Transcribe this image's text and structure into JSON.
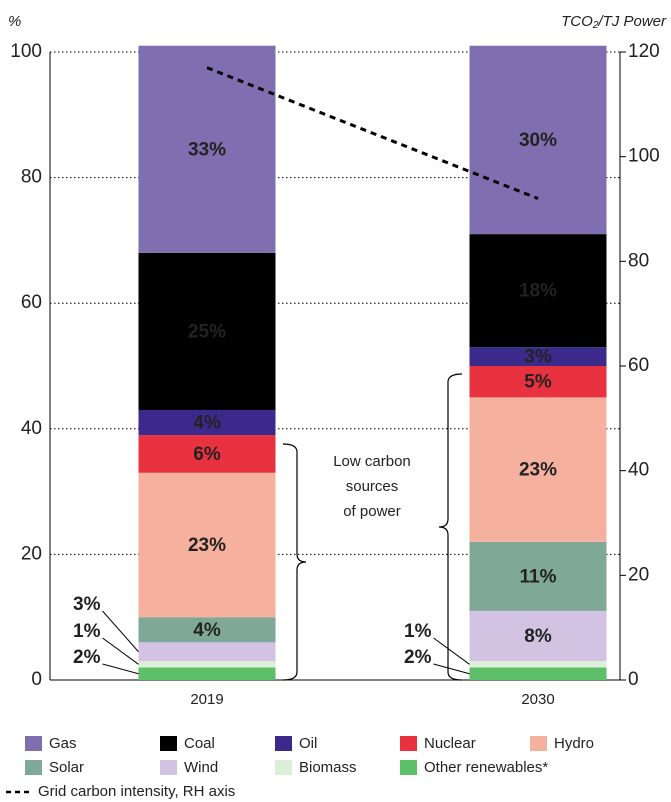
{
  "chart_data": {
    "type": "bar",
    "stacked": true,
    "y_label": "%",
    "y2_label": "TCO₂/TJ Power",
    "categories": [
      "2019",
      "2030"
    ],
    "ylim": [
      0,
      100
    ],
    "yticks": [
      0,
      20,
      40,
      60,
      80,
      100
    ],
    "y2lim": [
      0,
      120
    ],
    "y2ticks": [
      0,
      20,
      40,
      60,
      80,
      100,
      120
    ],
    "grid": true,
    "annotation": [
      "Low carbon",
      "sources",
      "of power"
    ],
    "series": [
      {
        "name": "Gas",
        "color": "#7f6fb0",
        "values": [
          33,
          30
        ],
        "value_labels": [
          "33%",
          "30%"
        ]
      },
      {
        "name": "Coal",
        "color": "#000000",
        "values": [
          25,
          18
        ],
        "value_labels": [
          "25%",
          "18%"
        ]
      },
      {
        "name": "Oil",
        "color": "#3b2a8c",
        "values": [
          4,
          3
        ],
        "value_labels": [
          "4%",
          "3%"
        ]
      },
      {
        "name": "Nuclear",
        "color": "#e8323f",
        "values": [
          6,
          5
        ],
        "value_labels": [
          "6%",
          "5%"
        ]
      },
      {
        "name": "Hydro",
        "color": "#f5b09e",
        "values": [
          23,
          23
        ],
        "value_labels": [
          "23%",
          "23%"
        ]
      },
      {
        "name": "Solar",
        "color": "#7fa898",
        "values": [
          4,
          11
        ],
        "value_labels": [
          "4%",
          "11%"
        ]
      },
      {
        "name": "Wind",
        "color": "#d2c3e3",
        "values": [
          3,
          8
        ],
        "value_labels": [
          "3%",
          "8%"
        ]
      },
      {
        "name": "Biomass",
        "color": "#dcefd8",
        "values": [
          1,
          1
        ],
        "value_labels": [
          "1%",
          "1%"
        ]
      },
      {
        "name": "Other renewables*",
        "color": "#5dbf68",
        "values": [
          2,
          2
        ],
        "value_labels": [
          "2%",
          "2%"
        ]
      },
      {
        "name": "Grid carbon intensity, RH axis",
        "type": "line",
        "axis": "y2",
        "color": "#000000",
        "dashed": true,
        "values": [
          117,
          92
        ]
      }
    ]
  }
}
